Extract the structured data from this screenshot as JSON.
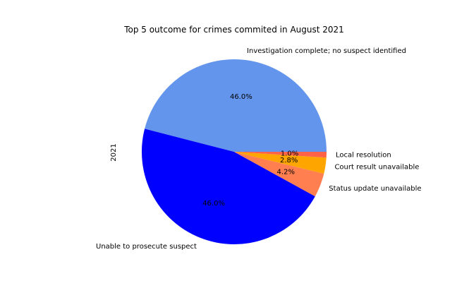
{
  "chart_data": {
    "type": "pie",
    "title": "Top 5 outcome for crimes commited in August 2021",
    "ylabel": "2021",
    "start_angle_deg": 0,
    "direction": "counterclockwise",
    "legend": "none",
    "slices": [
      {
        "label": "Investigation complete; no suspect identified",
        "percent": 46.0,
        "pct_text": "46.0%",
        "color": "#6495ED"
      },
      {
        "label": "Unable to prosecute suspect",
        "percent": 46.0,
        "pct_text": "46.0%",
        "color": "#0000FF"
      },
      {
        "label": "Status update unavailable",
        "percent": 4.2,
        "pct_text": "4.2%",
        "color": "#FF7F50"
      },
      {
        "label": "Court result unavailable",
        "percent": 2.8,
        "pct_text": "2.8%",
        "color": "#FFA500"
      },
      {
        "label": "Local resolution",
        "percent": 1.0,
        "pct_text": "1.0%",
        "color": "#FF6347"
      }
    ]
  }
}
